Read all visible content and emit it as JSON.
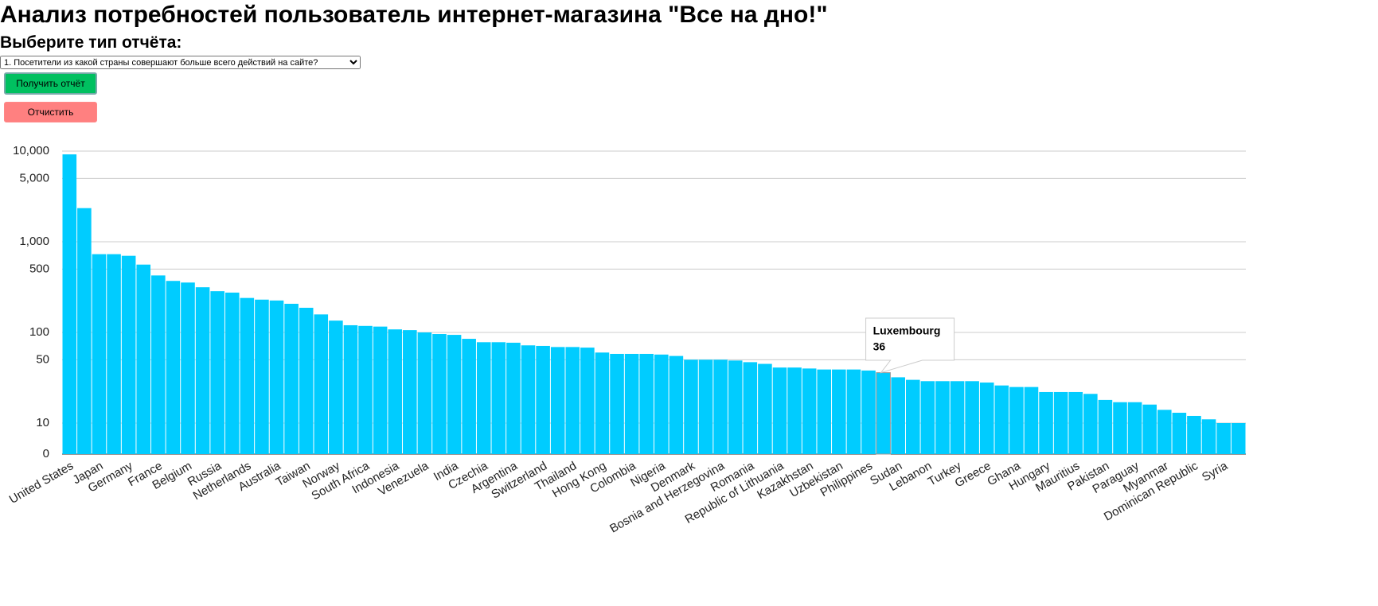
{
  "header": {
    "title": "Анализ потребностей пользователь интернет-магазина \"Все на дно!\"",
    "prompt": "Выберите тип отчёта:"
  },
  "form": {
    "selected_option": "1. Посетители из какой страны совершают больше всего действий на сайте?",
    "submit_button": "Получить отчёт",
    "clear_button": "Отчистить"
  },
  "chart_data": {
    "type": "bar",
    "log_scale": true,
    "grid": true,
    "color": "#00ccff",
    "categories": [
      "United States",
      null,
      "Japan",
      null,
      "Germany",
      null,
      "France",
      null,
      "Belgium",
      null,
      "Russia",
      null,
      "Netherlands",
      null,
      "Australia",
      null,
      "Taiwan",
      null,
      "Norway",
      null,
      "South Africa",
      null,
      "Indonesia",
      null,
      "Venezuela",
      null,
      "India",
      null,
      "Czechia",
      null,
      "Argentina",
      null,
      "Switzerland",
      null,
      "Thailand",
      null,
      "Hong Kong",
      null,
      "Colombia",
      null,
      "Nigeria",
      null,
      "Denmark",
      null,
      "Bosnia and Herzegovina",
      null,
      "Romania",
      null,
      "Republic of Lithuania",
      null,
      "Kazakhstan",
      null,
      "Uzbekistan",
      null,
      "Philippines",
      null,
      "Sudan",
      null,
      "Lebanon",
      null,
      "Turkey",
      null,
      "Greece",
      null,
      "Ghana",
      null,
      "Hungary",
      null,
      "Mauritius",
      null,
      "Pakistan",
      null,
      "Paraguay",
      null,
      "Myanmar",
      null,
      "Dominican Republic",
      null,
      "Syria",
      null
    ],
    "values": [
      9200,
      2350,
      730,
      730,
      700,
      560,
      425,
      370,
      355,
      315,
      285,
      275,
      240,
      230,
      225,
      207,
      187,
      158,
      135,
      120,
      118,
      116,
      108,
      106,
      100,
      96,
      94,
      85,
      78,
      78,
      77,
      72,
      71,
      69,
      69,
      68,
      60,
      58,
      58,
      58,
      57,
      55,
      50,
      50,
      50,
      49,
      47,
      45,
      41,
      41,
      40,
      39,
      39,
      39,
      38,
      36,
      32,
      30,
      29,
      29,
      29,
      29,
      28,
      26,
      25,
      25,
      22,
      22,
      22,
      21,
      18,
      17,
      17,
      16,
      14,
      13,
      12,
      11,
      10,
      10
    ],
    "ylim": [
      0,
      10000
    ],
    "yticks": [
      0,
      10,
      50,
      100,
      500,
      {
        "value": 1000,
        "label": "1,000"
      },
      {
        "value": 5000,
        "label": "5,000"
      },
      {
        "value": 10000,
        "label": "10,000"
      }
    ],
    "tooltip": {
      "title": "Luxembourg",
      "index": 55
    }
  }
}
